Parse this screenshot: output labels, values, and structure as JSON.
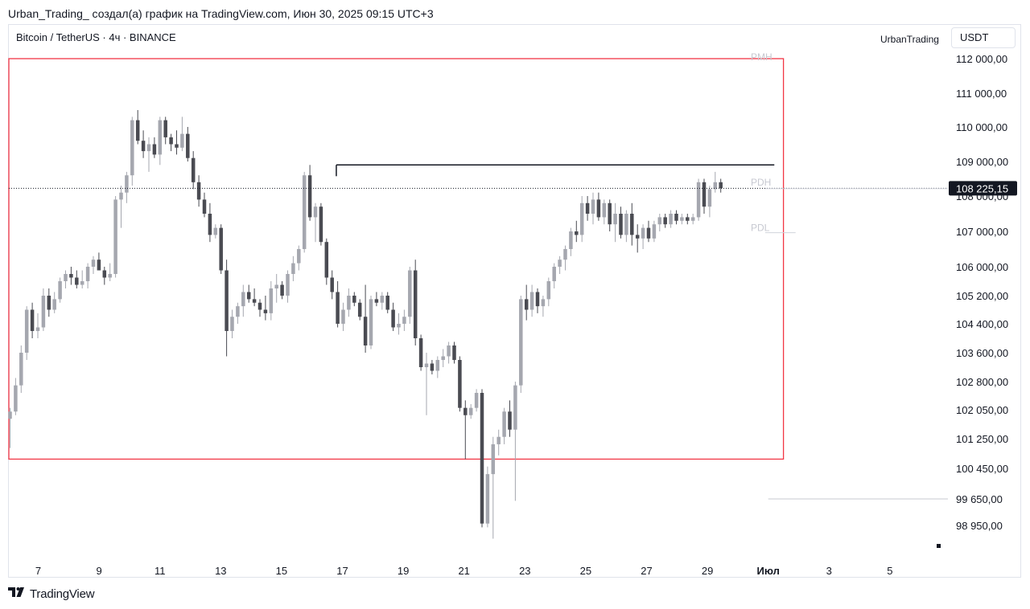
{
  "header": {
    "caption": "Urban_Trading_ создал(а) график на TradingView.com, Июн 30, 2025 09:15 UTC+3"
  },
  "legend": {
    "symbol": "Bitcoin / TetherUS · 4ч · BINANCE",
    "author": "UrbanTrading",
    "currency": "USDT"
  },
  "footer": {
    "brand": "TradingView",
    "logo_icon": "tradingview-logo-icon"
  },
  "colors": {
    "up": "#a5a7af",
    "down": "#4a4b52",
    "box": "#f23645",
    "line": "#131722",
    "price_label_bg": "#131722"
  },
  "chart_data": {
    "type": "candlestick",
    "symbol": "BTCUSDT",
    "timeframe": "4h",
    "exchange": "BINANCE",
    "y_scale": "piecewise",
    "price_axis": [
      {
        "label": "112 000,00",
        "value": 112000
      },
      {
        "label": "111 000,00",
        "value": 111000
      },
      {
        "label": "110 000,00",
        "value": 110000
      },
      {
        "label": "109 000,00",
        "value": 109000
      },
      {
        "label": "108 000,00",
        "value": 108000
      },
      {
        "label": "107 000,00",
        "value": 107000
      },
      {
        "label": "106 000,00",
        "value": 106000
      },
      {
        "label": "105 200,00",
        "value": 105200
      },
      {
        "label": "104 400,00",
        "value": 104400
      },
      {
        "label": "103 600,00",
        "value": 103600
      },
      {
        "label": "102 800,00",
        "value": 102800
      },
      {
        "label": "102 050,00",
        "value": 102050
      },
      {
        "label": "101 250,00",
        "value": 101250
      },
      {
        "label": "100 450,00",
        "value": 100450
      },
      {
        "label": "99 650,00",
        "value": 99650
      },
      {
        "label": "98 950,00",
        "value": 98950
      }
    ],
    "time_axis": [
      {
        "label": "7",
        "day": 7
      },
      {
        "label": "9",
        "day": 9
      },
      {
        "label": "11",
        "day": 11
      },
      {
        "label": "13",
        "day": 13
      },
      {
        "label": "15",
        "day": 15
      },
      {
        "label": "17",
        "day": 17
      },
      {
        "label": "19",
        "day": 19
      },
      {
        "label": "21",
        "day": 21
      },
      {
        "label": "23",
        "day": 23
      },
      {
        "label": "25",
        "day": 25
      },
      {
        "label": "27",
        "day": 27
      },
      {
        "label": "29",
        "day": 29
      },
      {
        "label": "Июл",
        "day": 31
      },
      {
        "label": "3",
        "day": 33
      },
      {
        "label": "5",
        "day": 35
      }
    ],
    "last_price": {
      "value": 108225.15,
      "label": "108 225,15"
    },
    "annotations": [
      {
        "label": "PMH",
        "value": 112000
      },
      {
        "label": "PDH",
        "value": 108400
      },
      {
        "label": "PDL",
        "value": 107100
      }
    ],
    "range_box": {
      "start_day": 5.0,
      "end_day": 31.5,
      "top": 112000,
      "bottom": 100700
    },
    "resistance_line": {
      "start_day": 16.8,
      "end_day": 31.2,
      "value": 108900
    },
    "level_line": {
      "start_day": 31.0,
      "end_day": 36.0,
      "value": 99650
    },
    "candles": [
      {
        "o": 101800,
        "h": 102100,
        "l": 101000,
        "c": 102000
      },
      {
        "o": 102000,
        "h": 102900,
        "l": 101900,
        "c": 102700
      },
      {
        "o": 102700,
        "h": 103800,
        "l": 102500,
        "c": 103600
      },
      {
        "o": 103600,
        "h": 104900,
        "l": 103400,
        "c": 104800
      },
      {
        "o": 104800,
        "h": 105000,
        "l": 104000,
        "c": 104200
      },
      {
        "o": 104200,
        "h": 104700,
        "l": 104000,
        "c": 104300
      },
      {
        "o": 104300,
        "h": 105400,
        "l": 104200,
        "c": 105200
      },
      {
        "o": 105200,
        "h": 105400,
        "l": 104600,
        "c": 104800
      },
      {
        "o": 104800,
        "h": 105300,
        "l": 104700,
        "c": 105100
      },
      {
        "o": 105100,
        "h": 105700,
        "l": 105000,
        "c": 105600
      },
      {
        "o": 105600,
        "h": 105900,
        "l": 105400,
        "c": 105800
      },
      {
        "o": 105800,
        "h": 106000,
        "l": 105500,
        "c": 105700
      },
      {
        "o": 105700,
        "h": 105900,
        "l": 105400,
        "c": 105500
      },
      {
        "o": 105500,
        "h": 105900,
        "l": 105400,
        "c": 105600
      },
      {
        "o": 105600,
        "h": 106100,
        "l": 105400,
        "c": 106000
      },
      {
        "o": 106000,
        "h": 106300,
        "l": 105800,
        "c": 106200
      },
      {
        "o": 106200,
        "h": 106400,
        "l": 105900,
        "c": 105900
      },
      {
        "o": 105900,
        "h": 106000,
        "l": 105500,
        "c": 105700
      },
      {
        "o": 105700,
        "h": 106100,
        "l": 105600,
        "c": 105800
      },
      {
        "o": 105800,
        "h": 108000,
        "l": 105700,
        "c": 107900
      },
      {
        "o": 107900,
        "h": 108300,
        "l": 107100,
        "c": 108100
      },
      {
        "o": 108100,
        "h": 108700,
        "l": 107800,
        "c": 108600
      },
      {
        "o": 108600,
        "h": 110300,
        "l": 108300,
        "c": 110200
      },
      {
        "o": 110200,
        "h": 110500,
        "l": 109500,
        "c": 109600
      },
      {
        "o": 109600,
        "h": 109900,
        "l": 109100,
        "c": 109300
      },
      {
        "o": 109300,
        "h": 109700,
        "l": 108700,
        "c": 109500
      },
      {
        "o": 109500,
        "h": 109700,
        "l": 109100,
        "c": 109200
      },
      {
        "o": 109200,
        "h": 110300,
        "l": 108900,
        "c": 110200
      },
      {
        "o": 110200,
        "h": 110300,
        "l": 109500,
        "c": 109700
      },
      {
        "o": 109700,
        "h": 109800,
        "l": 109300,
        "c": 109500
      },
      {
        "o": 109500,
        "h": 109900,
        "l": 109200,
        "c": 109400
      },
      {
        "o": 109400,
        "h": 110300,
        "l": 109300,
        "c": 109800
      },
      {
        "o": 109800,
        "h": 110000,
        "l": 109000,
        "c": 109100
      },
      {
        "o": 109100,
        "h": 109300,
        "l": 108200,
        "c": 108400
      },
      {
        "o": 108400,
        "h": 108600,
        "l": 107700,
        "c": 107900
      },
      {
        "o": 107900,
        "h": 108100,
        "l": 107400,
        "c": 107500
      },
      {
        "o": 107500,
        "h": 107800,
        "l": 106700,
        "c": 106900
      },
      {
        "o": 106900,
        "h": 107200,
        "l": 106800,
        "c": 107100
      },
      {
        "o": 107100,
        "h": 107200,
        "l": 105800,
        "c": 105900
      },
      {
        "o": 105900,
        "h": 106200,
        "l": 103500,
        "c": 104200
      },
      {
        "o": 104200,
        "h": 104800,
        "l": 104000,
        "c": 104600
      },
      {
        "o": 104600,
        "h": 105000,
        "l": 104400,
        "c": 104900
      },
      {
        "o": 104900,
        "h": 105500,
        "l": 104600,
        "c": 105300
      },
      {
        "o": 105300,
        "h": 105500,
        "l": 105000,
        "c": 105100
      },
      {
        "o": 105100,
        "h": 105400,
        "l": 104900,
        "c": 105000
      },
      {
        "o": 105000,
        "h": 105100,
        "l": 104600,
        "c": 104800
      },
      {
        "o": 104800,
        "h": 105200,
        "l": 104500,
        "c": 104700
      },
      {
        "o": 104700,
        "h": 105600,
        "l": 104500,
        "c": 105400
      },
      {
        "o": 105400,
        "h": 105800,
        "l": 105000,
        "c": 105500
      },
      {
        "o": 105500,
        "h": 105600,
        "l": 105100,
        "c": 105200
      },
      {
        "o": 105200,
        "h": 105900,
        "l": 105000,
        "c": 105800
      },
      {
        "o": 105800,
        "h": 106300,
        "l": 105600,
        "c": 106100
      },
      {
        "o": 106100,
        "h": 106600,
        "l": 105900,
        "c": 106500
      },
      {
        "o": 106500,
        "h": 108700,
        "l": 106400,
        "c": 108600
      },
      {
        "o": 108600,
        "h": 108900,
        "l": 107300,
        "c": 107400
      },
      {
        "o": 107400,
        "h": 107800,
        "l": 106700,
        "c": 107700
      },
      {
        "o": 107700,
        "h": 107800,
        "l": 106600,
        "c": 106700
      },
      {
        "o": 106700,
        "h": 106800,
        "l": 105500,
        "c": 105700
      },
      {
        "o": 105700,
        "h": 105900,
        "l": 105100,
        "c": 105300
      },
      {
        "o": 105300,
        "h": 105600,
        "l": 104300,
        "c": 104400
      },
      {
        "o": 104400,
        "h": 105000,
        "l": 104200,
        "c": 104800
      },
      {
        "o": 104800,
        "h": 105400,
        "l": 104600,
        "c": 105200
      },
      {
        "o": 105200,
        "h": 105300,
        "l": 104900,
        "c": 105000
      },
      {
        "o": 105000,
        "h": 105100,
        "l": 104500,
        "c": 104600
      },
      {
        "o": 104600,
        "h": 105500,
        "l": 103600,
        "c": 103800
      },
      {
        "o": 103800,
        "h": 105200,
        "l": 103700,
        "c": 105100
      },
      {
        "o": 105100,
        "h": 105300,
        "l": 104900,
        "c": 105000
      },
      {
        "o": 105000,
        "h": 105300,
        "l": 104800,
        "c": 105200
      },
      {
        "o": 105200,
        "h": 105300,
        "l": 104700,
        "c": 104800
      },
      {
        "o": 104800,
        "h": 105000,
        "l": 104200,
        "c": 104300
      },
      {
        "o": 104300,
        "h": 104700,
        "l": 104100,
        "c": 104400
      },
      {
        "o": 104400,
        "h": 104800,
        "l": 104200,
        "c": 104600
      },
      {
        "o": 104600,
        "h": 106000,
        "l": 104400,
        "c": 105900
      },
      {
        "o": 105900,
        "h": 106200,
        "l": 103800,
        "c": 104000
      },
      {
        "o": 104000,
        "h": 104100,
        "l": 103100,
        "c": 103200
      },
      {
        "o": 103200,
        "h": 103600,
        "l": 101900,
        "c": 103300
      },
      {
        "o": 103300,
        "h": 103400,
        "l": 103000,
        "c": 103100
      },
      {
        "o": 103100,
        "h": 103500,
        "l": 102900,
        "c": 103400
      },
      {
        "o": 103400,
        "h": 103700,
        "l": 103200,
        "c": 103500
      },
      {
        "o": 103500,
        "h": 103900,
        "l": 103300,
        "c": 103800
      },
      {
        "o": 103800,
        "h": 103900,
        "l": 103300,
        "c": 103400
      },
      {
        "o": 103400,
        "h": 103500,
        "l": 102000,
        "c": 102100
      },
      {
        "o": 102100,
        "h": 102300,
        "l": 100700,
        "c": 101900
      },
      {
        "o": 101900,
        "h": 102200,
        "l": 101800,
        "c": 102100
      },
      {
        "o": 102100,
        "h": 102600,
        "l": 102000,
        "c": 102500
      },
      {
        "o": 102500,
        "h": 102600,
        "l": 98900,
        "c": 99000
      },
      {
        "o": 99000,
        "h": 100500,
        "l": 98900,
        "c": 100300
      },
      {
        "o": 100300,
        "h": 101300,
        "l": 98600,
        "c": 101100
      },
      {
        "o": 101100,
        "h": 101500,
        "l": 100800,
        "c": 101300
      },
      {
        "o": 101300,
        "h": 102100,
        "l": 101100,
        "c": 102000
      },
      {
        "o": 102000,
        "h": 102300,
        "l": 101300,
        "c": 101500
      },
      {
        "o": 101500,
        "h": 102800,
        "l": 99600,
        "c": 102700
      },
      {
        "o": 102700,
        "h": 105200,
        "l": 102500,
        "c": 105100
      },
      {
        "o": 105100,
        "h": 105500,
        "l": 104500,
        "c": 104800
      },
      {
        "o": 104800,
        "h": 105500,
        "l": 104600,
        "c": 105300
      },
      {
        "o": 105300,
        "h": 105400,
        "l": 104700,
        "c": 104900
      },
      {
        "o": 104900,
        "h": 105200,
        "l": 104600,
        "c": 105100
      },
      {
        "o": 105100,
        "h": 105700,
        "l": 104900,
        "c": 105600
      },
      {
        "o": 105600,
        "h": 106100,
        "l": 105400,
        "c": 106000
      },
      {
        "o": 106000,
        "h": 106300,
        "l": 105800,
        "c": 106200
      },
      {
        "o": 106200,
        "h": 106600,
        "l": 105900,
        "c": 106500
      },
      {
        "o": 106500,
        "h": 107100,
        "l": 106300,
        "c": 107000
      },
      {
        "o": 107000,
        "h": 107300,
        "l": 106700,
        "c": 106900
      },
      {
        "o": 106900,
        "h": 108000,
        "l": 106700,
        "c": 107800
      },
      {
        "o": 107800,
        "h": 108000,
        "l": 107300,
        "c": 107500
      },
      {
        "o": 107500,
        "h": 108100,
        "l": 107200,
        "c": 107900
      },
      {
        "o": 107900,
        "h": 108100,
        "l": 107300,
        "c": 107400
      },
      {
        "o": 107400,
        "h": 107900,
        "l": 107200,
        "c": 107800
      },
      {
        "o": 107800,
        "h": 107900,
        "l": 107000,
        "c": 107200
      },
      {
        "o": 107200,
        "h": 107800,
        "l": 106700,
        "c": 107500
      },
      {
        "o": 107500,
        "h": 107700,
        "l": 106800,
        "c": 106900
      },
      {
        "o": 106900,
        "h": 107600,
        "l": 106700,
        "c": 107500
      },
      {
        "o": 107500,
        "h": 107800,
        "l": 106600,
        "c": 106900
      },
      {
        "o": 106900,
        "h": 107200,
        "l": 106400,
        "c": 106800
      },
      {
        "o": 106800,
        "h": 107200,
        "l": 106500,
        "c": 107100
      },
      {
        "o": 107100,
        "h": 107300,
        "l": 106700,
        "c": 106800
      },
      {
        "o": 106800,
        "h": 107300,
        "l": 106700,
        "c": 107200
      },
      {
        "o": 107200,
        "h": 107500,
        "l": 107000,
        "c": 107400
      },
      {
        "o": 107400,
        "h": 107500,
        "l": 107100,
        "c": 107200
      },
      {
        "o": 107200,
        "h": 107600,
        "l": 107100,
        "c": 107500
      },
      {
        "o": 107500,
        "h": 107600,
        "l": 107200,
        "c": 107300
      },
      {
        "o": 107300,
        "h": 107500,
        "l": 107200,
        "c": 107400
      },
      {
        "o": 107400,
        "h": 107500,
        "l": 107200,
        "c": 107300
      },
      {
        "o": 107300,
        "h": 107500,
        "l": 107200,
        "c": 107400
      },
      {
        "o": 107400,
        "h": 108500,
        "l": 107300,
        "c": 108400
      },
      {
        "o": 108400,
        "h": 108500,
        "l": 107500,
        "c": 107700
      },
      {
        "o": 107700,
        "h": 108300,
        "l": 107400,
        "c": 108200
      },
      {
        "o": 108200,
        "h": 108700,
        "l": 108100,
        "c": 108400
      },
      {
        "o": 108400,
        "h": 108500,
        "l": 108100,
        "c": 108225
      }
    ]
  }
}
